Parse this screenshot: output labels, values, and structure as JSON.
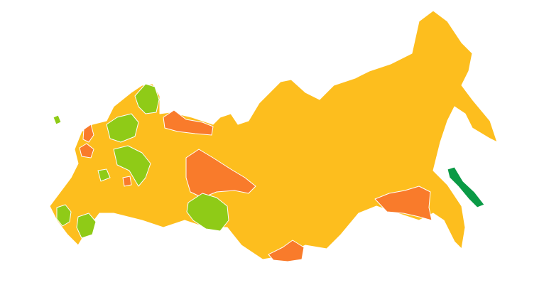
{
  "map": {
    "colors": {
      "base": "#FDBE1E",
      "high": "#F97B2B",
      "low": "#8FCB17",
      "lowest": "#0A9A45"
    },
    "regions": [
      {
        "id": "main-territory",
        "level": "base"
      },
      {
        "id": "nenets",
        "level": "high"
      },
      {
        "id": "khanty-mansi",
        "level": "high"
      },
      {
        "id": "amur",
        "level": "high"
      },
      {
        "id": "tuva",
        "level": "high"
      },
      {
        "id": "leningrad",
        "level": "high"
      },
      {
        "id": "karelia-pskov",
        "level": "high"
      },
      {
        "id": "ryazan",
        "level": "high"
      },
      {
        "id": "murmansk",
        "level": "low"
      },
      {
        "id": "karelia",
        "level": "low"
      },
      {
        "id": "vologda-kostroma",
        "level": "low"
      },
      {
        "id": "kaluga",
        "level": "low"
      },
      {
        "id": "kaliningrad",
        "level": "low"
      },
      {
        "id": "tyumen-kurgan",
        "level": "low"
      },
      {
        "id": "krasnodar",
        "level": "low"
      },
      {
        "id": "stavropol",
        "level": "low"
      },
      {
        "id": "sakhalin",
        "level": "lowest"
      }
    ]
  }
}
